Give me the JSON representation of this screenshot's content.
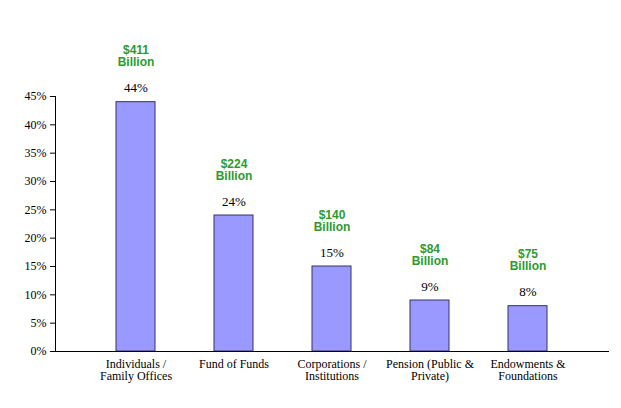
{
  "chart_data": {
    "type": "bar",
    "categories": [
      "Individuals /\nFamily Offices",
      "Fund of Funds",
      "Corporations /\nInstitutions",
      "Pension (Public &\nPrivate)",
      "Endowments &\nFoundations"
    ],
    "values": [
      44,
      24,
      15,
      9,
      8
    ],
    "value_labels": [
      "44%",
      "24%",
      "15%",
      "9%",
      "8%"
    ],
    "annotations": [
      "$411\nBillion",
      "$224\nBillion",
      "$140\nBillion",
      "$84\nBillion",
      "$75\nBillion"
    ],
    "color": "#9999ff",
    "ylim": [
      0,
      45
    ],
    "yticks": [
      {
        "value": 0,
        "label": "0%"
      },
      {
        "value": 5,
        "label": "5%"
      },
      {
        "value": 10,
        "label": "10%"
      },
      {
        "value": 15,
        "label": "15%"
      },
      {
        "value": 20,
        "label": "20%"
      },
      {
        "value": 25,
        "label": "25%"
      },
      {
        "value": 30,
        "label": "30%"
      },
      {
        "value": 35,
        "label": "35%"
      },
      {
        "value": 40,
        "label": "40%"
      },
      {
        "value": 45,
        "label": "45%"
      }
    ],
    "grid": false,
    "data_labels": true
  }
}
